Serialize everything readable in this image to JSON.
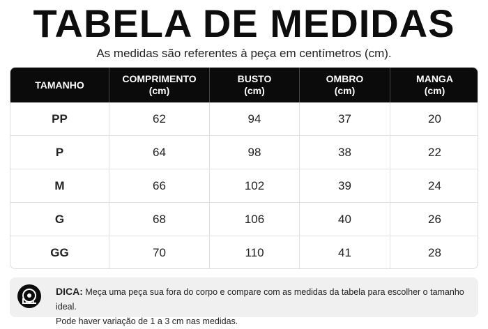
{
  "header": {
    "title": "TABELA DE MEDIDAS",
    "subtitle": "As medidas são referentes à peça em centímetros (cm)."
  },
  "table": {
    "columns": [
      {
        "name": "TAMANHO"
      },
      {
        "name": "COMPRIMENTO",
        "unit": "(cm)"
      },
      {
        "name": "BUSTO",
        "unit": "(cm)"
      },
      {
        "name": "OMBRO",
        "unit": "(cm)"
      },
      {
        "name": "MANGA",
        "unit": "(cm)"
      }
    ],
    "rows": [
      [
        "PP",
        62,
        94,
        37,
        20
      ],
      [
        "P",
        64,
        98,
        38,
        22
      ],
      [
        "M",
        66,
        102,
        39,
        24
      ],
      [
        "G",
        68,
        106,
        40,
        26
      ],
      [
        "GG",
        70,
        110,
        41,
        28
      ]
    ]
  },
  "tip": {
    "label": "DICA:",
    "text": "Meça uma peça sua fora do corpo e compare com as medidas da tabela para escolher o tamanho ideal.",
    "note": "Pode haver variação de 1 a 3 cm nas medidas."
  }
}
